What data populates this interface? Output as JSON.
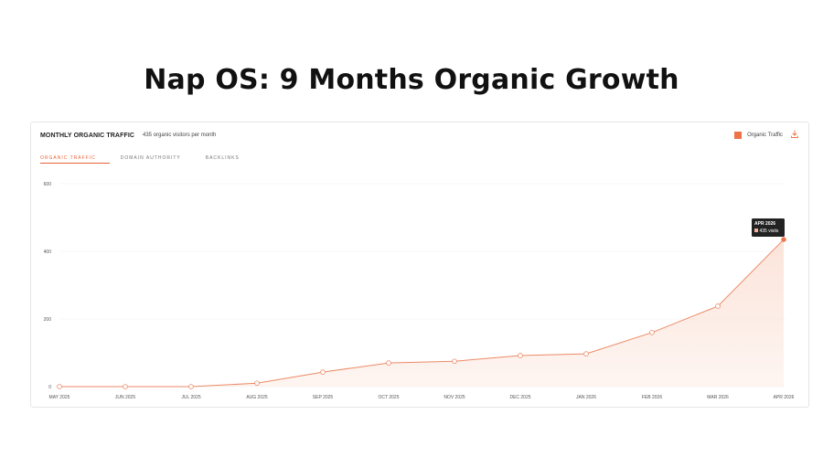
{
  "page": {
    "title": "Nap OS: 9 Months Organic Growth"
  },
  "card": {
    "title": "MONTHLY ORGANIC TRAFFIC",
    "subtitle": "435 organic visitors per month",
    "legend_label": "Organic Traffic",
    "tabs": [
      {
        "label": "ORGANIC TRAFFIC",
        "active": true
      },
      {
        "label": "DOMAIN AUTHORITY",
        "active": false
      },
      {
        "label": "BACKLINKS",
        "active": false
      }
    ]
  },
  "colors": {
    "accent": "#ee7248",
    "line": "#ec8a66",
    "fill": "#fbe3d8"
  },
  "tooltip": {
    "title": "APR 2026",
    "value": "435 visits"
  },
  "chart_data": {
    "type": "area",
    "categories": [
      "MAY 2025",
      "JUN 2025",
      "JUL 2025",
      "AUG 2025",
      "SEP 2025",
      "OCT 2025",
      "NOV 2025",
      "DEC 2025",
      "JAN 2026",
      "FEB 2026",
      "MAR 2026",
      "APR 2026"
    ],
    "series": [
      {
        "name": "Organic Traffic",
        "values": [
          0,
          0,
          0,
          10,
          43,
          70,
          75,
          92,
          97,
          160,
          238,
          435
        ]
      }
    ],
    "ylim": [
      0,
      600
    ],
    "yticks": [
      0,
      200,
      400,
      600
    ],
    "grid": true,
    "legend": "top-right"
  }
}
